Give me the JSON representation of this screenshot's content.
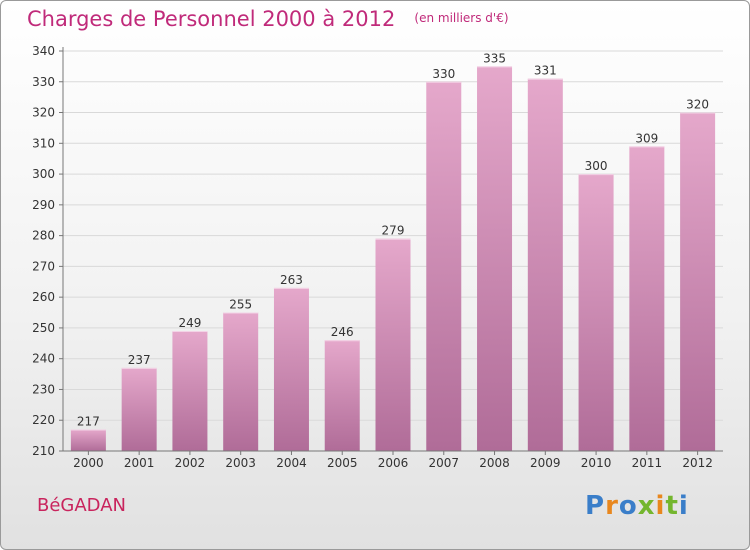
{
  "colors": {
    "title": "#c02a7a",
    "bar_top": "#e5a8cb",
    "bar_bottom": "#b06c98",
    "grid": "#d9d9d9",
    "city": "#c9245d"
  },
  "city_name": "BéGADAN",
  "logo": {
    "letters": [
      "P",
      "r",
      "o",
      "x",
      "i",
      "t",
      "i"
    ],
    "colors": [
      "#3a7ec9",
      "#e8871e",
      "#3a7ec9",
      "#74b62e",
      "#e8871e",
      "#74b62e",
      "#3a7ec9"
    ]
  },
  "chart_data": {
    "type": "bar",
    "title": "Charges de Personnel 2000 à 2012",
    "subtitle": "(en milliers d'€)",
    "categories": [
      "2000",
      "2001",
      "2002",
      "2003",
      "2004",
      "2005",
      "2006",
      "2007",
      "2008",
      "2009",
      "2010",
      "2011",
      "2012"
    ],
    "values": [
      217,
      237,
      249,
      255,
      263,
      246,
      279,
      330,
      335,
      331,
      300,
      309,
      320
    ],
    "ylim": [
      210,
      340
    ],
    "yticks": [
      210,
      220,
      230,
      240,
      250,
      260,
      270,
      280,
      290,
      300,
      310,
      320,
      330,
      340
    ],
    "grid": true,
    "legend": "none"
  }
}
